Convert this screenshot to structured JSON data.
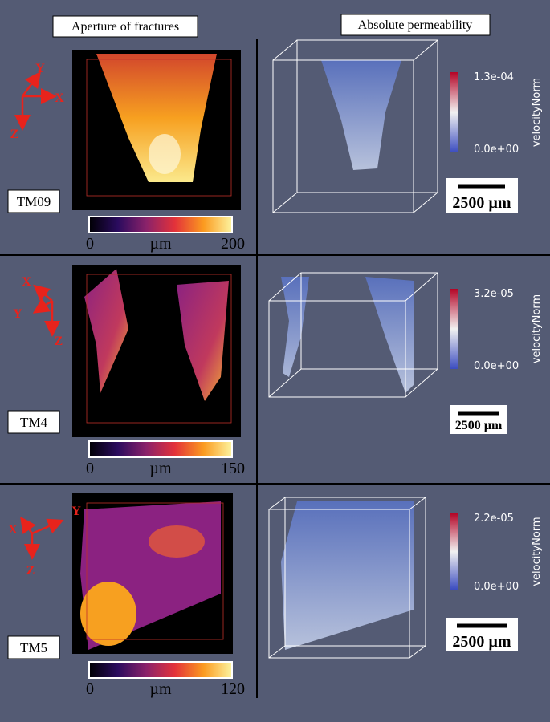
{
  "headers": {
    "left": "Aperture of fractures",
    "right": "Absolute permeability"
  },
  "rows": [
    {
      "sample": "TM09",
      "axes": [
        "Y",
        "X",
        "Z"
      ],
      "aperture_colorbar": {
        "min": "0",
        "unit": "µm",
        "max": "200"
      },
      "velocity_colorbar": {
        "max": "1.3e-04",
        "min": "0.0e+00",
        "title": "velocityNorm"
      },
      "scale_bar": "2500 µm"
    },
    {
      "sample": "TM4",
      "axes": [
        "X",
        "Y",
        "Z"
      ],
      "aperture_colorbar": {
        "min": "0",
        "unit": "µm",
        "max": "150"
      },
      "velocity_colorbar": {
        "max": "3.2e-05",
        "min": "0.0e+00",
        "title": "velocityNorm"
      },
      "scale_bar": "2500 µm"
    },
    {
      "sample": "TM5",
      "axes": [
        "Y",
        "X",
        "Z"
      ],
      "aperture_colorbar": {
        "min": "0",
        "unit": "µm",
        "max": "120"
      },
      "velocity_colorbar": {
        "max": "2.2e-05",
        "min": "0.0e+00",
        "title": "velocityNorm"
      },
      "scale_bar": "2500 µm"
    }
  ]
}
